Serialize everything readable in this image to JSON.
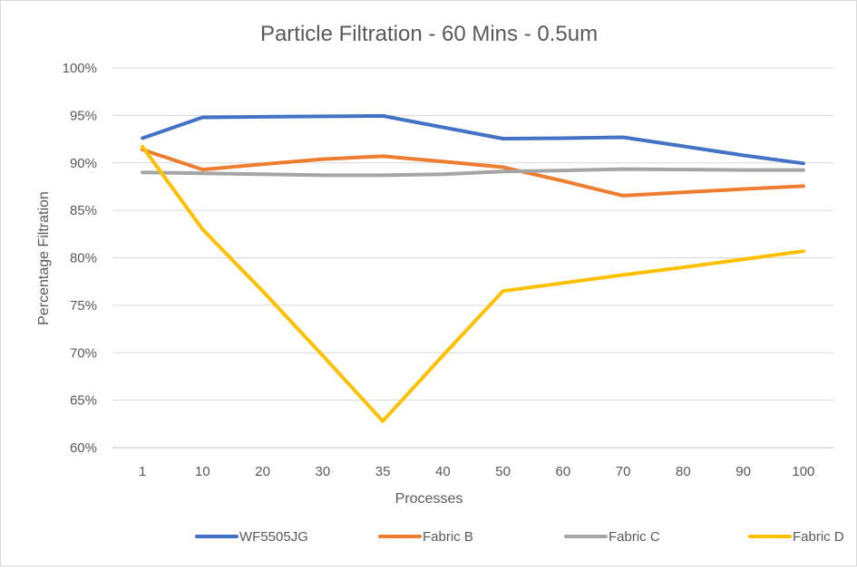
{
  "chart_data": {
    "type": "line",
    "title": "Particle Filtration - 60 Mins - 0.5um",
    "xlabel": "Processes",
    "ylabel": "Percentage Filtration",
    "categories": [
      "1",
      "10",
      "20",
      "30",
      "35",
      "40",
      "50",
      "60",
      "70",
      "80",
      "90",
      "100"
    ],
    "ylim": [
      0.6,
      1.0
    ],
    "y_ticks": [
      "60%",
      "65%",
      "70%",
      "75%",
      "80%",
      "85%",
      "90%",
      "95%",
      "100%"
    ],
    "grid": true,
    "legend_position": "bottom",
    "series": [
      {
        "name": "WF5505JG",
        "color": "#4472c4",
        "values": [
          0.926,
          0.948,
          0.9485,
          0.949,
          0.9495,
          0.9375,
          0.9255,
          0.926,
          0.927,
          0.9175,
          0.908,
          0.8995
        ]
      },
      {
        "name": "Fabric B",
        "color": "#ed7d31",
        "values": [
          0.914,
          0.893,
          0.8985,
          0.904,
          0.907,
          0.9015,
          0.8955,
          0.881,
          0.8655,
          0.869,
          0.8725,
          0.8755
        ]
      },
      {
        "name": "Fabric C",
        "color": "#a5a5a5",
        "values": [
          0.89,
          0.889,
          0.888,
          0.887,
          0.887,
          0.888,
          0.891,
          0.892,
          0.8935,
          0.893,
          0.8925,
          0.8925
        ]
      },
      {
        "name": "Fabric D",
        "color": "#ffc000",
        "values": [
          0.917,
          0.83,
          0.765,
          0.697,
          0.628,
          0.697,
          0.765,
          0.7735,
          0.782,
          0.79,
          0.7985,
          0.807
        ]
      }
    ]
  }
}
